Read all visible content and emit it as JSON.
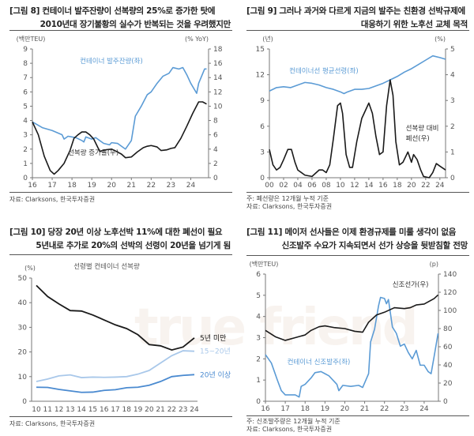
{
  "colors": {
    "blue": "#5b9bd5",
    "black": "#1a1a1a",
    "light_blue": "#a9c8ea",
    "mid_blue": "#4a8ad0"
  },
  "watermark": "true friend",
  "chart_data": [
    {
      "id": "c8",
      "type": "line",
      "title_line1": "[그림 8] 컨테이너 발주잔량이 선복량의 25%로 증가한 탓에",
      "title_line2": "2010년대 장기불황의 실수가 반복되는 것을 우려했지만",
      "ylabel_left": "(백만TEU)",
      "ylabel_right": "(% YoY)",
      "ylim_left": [
        0,
        9
      ],
      "ylim_right": [
        0,
        18
      ],
      "yticks_left": [
        "0",
        "1",
        "2",
        "3",
        "4",
        "5",
        "6",
        "7",
        "8",
        "9"
      ],
      "yticks_right": [
        "0",
        "2",
        "4",
        "6",
        "8",
        "10",
        "12",
        "14",
        "16",
        "18"
      ],
      "xlim": [
        16,
        24.9
      ],
      "xticks": [
        "16",
        "17",
        "18",
        "19",
        "20",
        "21",
        "22",
        "23",
        "24"
      ],
      "notes": [
        "자료: Clarksons, 한국투자증권"
      ],
      "series": [
        {
          "name": "컨테이너 발주잔량(좌)",
          "axis": "left",
          "color": "#5b9bd5",
          "label_pos": [
            18.4,
            8.0
          ],
          "points": [
            [
              16,
              3.9
            ],
            [
              16.5,
              3.5
            ],
            [
              17,
              3.3
            ],
            [
              17.5,
              3.0
            ],
            [
              17.6,
              2.7
            ],
            [
              17.8,
              2.9
            ],
            [
              18.2,
              2.8
            ],
            [
              18.5,
              2.6
            ],
            [
              18.6,
              2.5
            ],
            [
              18.7,
              2.85
            ],
            [
              19,
              2.7
            ],
            [
              19.2,
              2.8
            ],
            [
              19.6,
              2.4
            ],
            [
              19.9,
              2.3
            ],
            [
              20,
              2.45
            ],
            [
              20.3,
              2.4
            ],
            [
              20.7,
              2.0
            ],
            [
              21,
              2.6
            ],
            [
              21.2,
              4.3
            ],
            [
              21.5,
              5.0
            ],
            [
              21.8,
              5.8
            ],
            [
              22,
              6.0
            ],
            [
              22.3,
              6.6
            ],
            [
              22.6,
              7.1
            ],
            [
              22.9,
              7.3
            ],
            [
              23.1,
              7.7
            ],
            [
              23.4,
              7.6
            ],
            [
              23.6,
              7.7
            ],
            [
              23.8,
              7.2
            ],
            [
              24,
              6.6
            ],
            [
              24.3,
              5.9
            ],
            [
              24.4,
              6.6
            ],
            [
              24.7,
              7.6
            ],
            [
              24.8,
              7.6
            ]
          ]
        },
        {
          "name": "선복량 증가율(우)",
          "axis": "right",
          "color": "#1a1a1a",
          "label_pos": [
            17.8,
            1.6
          ],
          "points": [
            [
              16,
              7.8
            ],
            [
              16.3,
              6.0
            ],
            [
              16.6,
              3.0
            ],
            [
              16.9,
              1.0
            ],
            [
              17.1,
              0.5
            ],
            [
              17.3,
              1.0
            ],
            [
              17.6,
              2.0
            ],
            [
              17.9,
              3.8
            ],
            [
              18.1,
              5.5
            ],
            [
              18.3,
              6.0
            ],
            [
              18.5,
              6.4
            ],
            [
              18.7,
              6.4
            ],
            [
              18.9,
              6.0
            ],
            [
              19.1,
              5.4
            ],
            [
              19.4,
              3.7
            ],
            [
              19.7,
              3.9
            ],
            [
              20,
              4.0
            ],
            [
              20.3,
              3.6
            ],
            [
              20.5,
              3.3
            ],
            [
              20.7,
              2.8
            ],
            [
              21,
              2.9
            ],
            [
              21.3,
              3.6
            ],
            [
              21.6,
              4.2
            ],
            [
              21.8,
              4.4
            ],
            [
              22,
              4.5
            ],
            [
              22.3,
              4.3
            ],
            [
              22.5,
              3.8
            ],
            [
              22.8,
              3.9
            ],
            [
              23,
              4.1
            ],
            [
              23.2,
              4.2
            ],
            [
              23.5,
              5.5
            ],
            [
              23.8,
              7.2
            ],
            [
              24.1,
              9.0
            ],
            [
              24.4,
              10.6
            ],
            [
              24.6,
              10.6
            ],
            [
              24.8,
              10.3
            ]
          ]
        }
      ]
    },
    {
      "id": "c9",
      "type": "line",
      "title_line1": "[그림 9] 그러나 과거와 다르게 지금의 발주는 친환경 선박규제에",
      "title_line2": "대응하기 위한 노후선 교체 목적",
      "ylabel_left": "(년)",
      "ylabel_right": "(%)",
      "ylim_left": [
        0,
        15
      ],
      "ylim_right": [
        0,
        5
      ],
      "yticks_left": [
        "0",
        "3",
        "6",
        "9",
        "12",
        "15"
      ],
      "yticks_right": [
        "0",
        "1",
        "2",
        "3",
        "4",
        "5"
      ],
      "xlim": [
        0,
        24.8
      ],
      "xticks": [
        "00",
        "02",
        "04",
        "06",
        "08",
        "10",
        "12",
        "14",
        "16",
        "18",
        "20",
        "22",
        "24"
      ],
      "notes": [
        "주: 폐선량은 12개월 누적 기준",
        "자료: Clarksons, 한국투자증권"
      ],
      "series": [
        {
          "name": "컨테이너선 평균선령(좌)",
          "axis": "left",
          "color": "#5b9bd5",
          "label_pos": [
            2.8,
            12.2
          ],
          "points": [
            [
              0,
              10.1
            ],
            [
              1,
              10.5
            ],
            [
              2,
              10.6
            ],
            [
              3,
              10.5
            ],
            [
              4,
              10.8
            ],
            [
              5,
              11.1
            ],
            [
              6,
              11
            ],
            [
              7,
              10.8
            ],
            [
              8,
              10.5
            ],
            [
              9,
              10.3
            ],
            [
              10,
              10
            ],
            [
              10.5,
              9.8
            ],
            [
              11,
              10
            ],
            [
              12,
              10.3
            ],
            [
              13,
              10.3
            ],
            [
              14,
              10.4
            ],
            [
              15,
              10.7
            ],
            [
              16,
              11
            ],
            [
              17,
              11.4
            ],
            [
              18,
              11.8
            ],
            [
              19,
              12.3
            ],
            [
              20,
              12.7
            ],
            [
              21,
              13.2
            ],
            [
              22,
              13.7
            ],
            [
              23,
              14.2
            ],
            [
              24,
              14
            ],
            [
              24.8,
              13.8
            ]
          ]
        },
        {
          "name": "선복량 대비",
          "name2": "폐선(우)",
          "axis": "right",
          "color": "#1a1a1a",
          "label_pos": [
            19.2,
            5.5
          ],
          "points": [
            [
              0,
              1.1
            ],
            [
              0.5,
              0.5
            ],
            [
              1,
              0.3
            ],
            [
              1.5,
              0.4
            ],
            [
              2,
              0.7
            ],
            [
              2.6,
              1.1
            ],
            [
              3.1,
              1.1
            ],
            [
              3.6,
              0.6
            ],
            [
              4,
              0.3
            ],
            [
              5,
              0.1
            ],
            [
              6,
              0.05
            ],
            [
              7,
              0.3
            ],
            [
              7.5,
              0.3
            ],
            [
              8,
              0.2
            ],
            [
              8.5,
              0.5
            ],
            [
              9,
              1.5
            ],
            [
              9.6,
              2.8
            ],
            [
              10,
              2.9
            ],
            [
              10.3,
              2.5
            ],
            [
              10.8,
              0.9
            ],
            [
              11.3,
              0.4
            ],
            [
              11.7,
              0.4
            ],
            [
              12.3,
              1.4
            ],
            [
              13,
              2.3
            ],
            [
              13.5,
              2.6
            ],
            [
              14,
              2.9
            ],
            [
              14.5,
              2.5
            ],
            [
              15,
              1.6
            ],
            [
              15.5,
              0.9
            ],
            [
              16,
              1.0
            ],
            [
              16.5,
              2.8
            ],
            [
              17,
              3.8
            ],
            [
              17.4,
              3.2
            ],
            [
              17.8,
              1.4
            ],
            [
              18.3,
              0.5
            ],
            [
              18.8,
              0.6
            ],
            [
              19.5,
              1.0
            ],
            [
              20,
              0.6
            ],
            [
              20.3,
              0.9
            ],
            [
              20.8,
              0.7
            ],
            [
              21.3,
              0.3
            ],
            [
              21.7,
              0.05
            ],
            [
              22.5,
              0
            ],
            [
              23,
              0.2
            ],
            [
              23.5,
              0.55
            ],
            [
              24,
              0.45
            ],
            [
              24.8,
              0.3
            ]
          ]
        }
      ]
    },
    {
      "id": "c10",
      "type": "line",
      "title_line1": "[그림 10] 당장 20년 이상 노후선박 11%에 대한 폐선이 필요",
      "title_line2": "5년내로 추가로 20%의 선박의 선령이 20년을 넘기게 됨",
      "subtitle": "선령별 컨테이너 선복량",
      "ylabel_left": "(%)",
      "ylim_left": [
        0,
        50
      ],
      "yticks_left": [
        "0",
        "10",
        "20",
        "30",
        "40",
        "50"
      ],
      "categories": [
        "10",
        "11",
        "12",
        "13",
        "14",
        "15",
        "16",
        "17",
        "18",
        "19",
        "20",
        "21",
        "22",
        "23",
        "24"
      ],
      "notes": [
        "자료: Clarksons, 한국투자증권"
      ],
      "series": [
        {
          "name": "5년 미만",
          "color": "#1a1a1a",
          "values": [
            47,
            42.5,
            39.5,
            36.8,
            36.6,
            35,
            33,
            31,
            29.5,
            27,
            23,
            22.5,
            20.8,
            22,
            25.7
          ]
        },
        {
          "name": "15~20년",
          "color": "#a9c8ea",
          "values": [
            8,
            9,
            10.3,
            10.7,
            9.6,
            9.8,
            9.7,
            9.8,
            10,
            11,
            12.5,
            15.5,
            18.5,
            20.5,
            20.3
          ]
        },
        {
          "name": "20년 이상",
          "color": "#4a8ad0",
          "values": [
            5.7,
            5.6,
            4.8,
            4.2,
            3.6,
            3.7,
            4.4,
            4.7,
            5.5,
            5.7,
            6.5,
            8,
            10,
            10.5,
            10.8
          ]
        }
      ]
    },
    {
      "id": "c11",
      "type": "line",
      "title_line1": "[그림 11] 메이저 선사들은 이제 환경규제를 미룰 생각이 없음",
      "title_line2": "신조발주 수요가 지속되면서 선가 상승을 뒷받침할 전망",
      "ylabel_left": "(백만TEU)",
      "ylabel_right": "(p)",
      "ylim_left": [
        0,
        6
      ],
      "ylim_right": [
        0,
        140
      ],
      "yticks_left": [
        "0",
        "1",
        "2",
        "3",
        "4",
        "5",
        "6"
      ],
      "yticks_right": [
        "0",
        "20",
        "40",
        "60",
        "80",
        "100",
        "120",
        "140"
      ],
      "xlim": [
        16,
        24.72
      ],
      "xticks": [
        "16",
        "17",
        "18",
        "19",
        "20",
        "21",
        "22",
        "23",
        "24"
      ],
      "notes": [
        "주: 신조발주량은 12개월 누적 기준",
        "자료: Clarksons, 한국투자증권"
      ],
      "series": [
        {
          "name": "컨테이너 신조발주(좌)",
          "axis": "left",
          "color": "#5b9bd5",
          "label_pos": [
            17.1,
            1.75
          ],
          "points": [
            [
              16,
              2.2
            ],
            [
              16.3,
              1.8
            ],
            [
              16.6,
              1.0
            ],
            [
              16.8,
              0.5
            ],
            [
              17,
              0.3
            ],
            [
              17.5,
              0.3
            ],
            [
              17.7,
              0.2
            ],
            [
              17.8,
              0.7
            ],
            [
              18,
              0.8
            ],
            [
              18.3,
              1.1
            ],
            [
              18.5,
              1.35
            ],
            [
              18.8,
              1.4
            ],
            [
              19,
              1.3
            ],
            [
              19.2,
              1.2
            ],
            [
              19.4,
              1.0
            ],
            [
              19.6,
              0.8
            ],
            [
              19.7,
              0.5
            ],
            [
              19.9,
              0.75
            ],
            [
              20.3,
              0.7
            ],
            [
              20.7,
              0.75
            ],
            [
              20.9,
              0.65
            ],
            [
              21.2,
              1.3
            ],
            [
              21.3,
              2.8
            ],
            [
              21.5,
              3.4
            ],
            [
              21.7,
              4.5
            ],
            [
              21.8,
              4.9
            ],
            [
              22,
              4.85
            ],
            [
              22.1,
              4.6
            ],
            [
              22.2,
              4.8
            ],
            [
              22.4,
              3.5
            ],
            [
              22.6,
              3.2
            ],
            [
              22.8,
              2.6
            ],
            [
              23,
              2.7
            ],
            [
              23.2,
              2.3
            ],
            [
              23.4,
              2.0
            ],
            [
              23.6,
              2.4
            ],
            [
              23.8,
              1.7
            ],
            [
              24,
              1.7
            ],
            [
              24.2,
              1.4
            ],
            [
              24.35,
              1.3
            ],
            [
              24.5,
              2.1
            ],
            [
              24.7,
              3.2
            ]
          ]
        },
        {
          "name": "신조선가(우)",
          "axis": "right",
          "color": "#1a1a1a",
          "label_pos": [
            22.4,
            5.4
          ],
          "points": [
            [
              16,
              78
            ],
            [
              16.5,
              71
            ],
            [
              17,
              67
            ],
            [
              17.5,
              70
            ],
            [
              18,
              73
            ],
            [
              18.3,
              78
            ],
            [
              18.7,
              82
            ],
            [
              19,
              83
            ],
            [
              19.5,
              81
            ],
            [
              20,
              80
            ],
            [
              20.5,
              77
            ],
            [
              20.9,
              76
            ],
            [
              21.2,
              87
            ],
            [
              21.6,
              95
            ],
            [
              22,
              98
            ],
            [
              22.5,
              103
            ],
            [
              23,
              102
            ],
            [
              23.3,
              103
            ],
            [
              23.6,
              106
            ],
            [
              24,
              107
            ],
            [
              24.5,
              113
            ],
            [
              24.7,
              117
            ]
          ]
        }
      ]
    }
  ]
}
